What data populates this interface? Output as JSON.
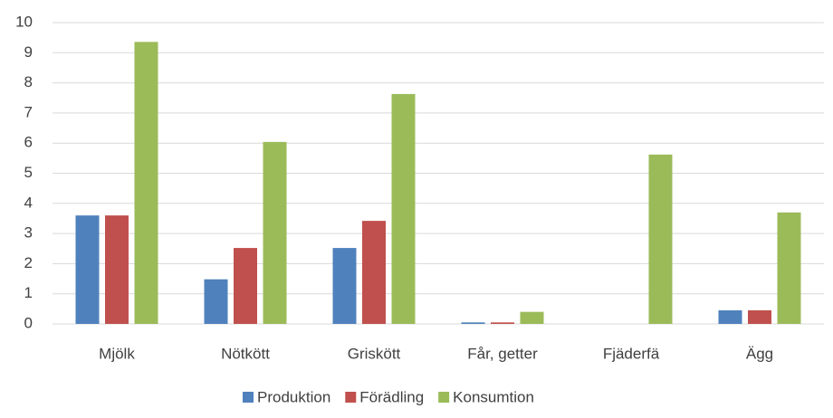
{
  "chart_data": {
    "type": "bar",
    "categories": [
      "Mjölk",
      "Nötkött",
      "Griskött",
      "Får, getter",
      "Fjäderfä",
      "Ägg"
    ],
    "series": [
      {
        "name": "Produktion",
        "color": "#4f81bd",
        "values": [
          3.6,
          1.48,
          2.52,
          0.05,
          0,
          0.45
        ]
      },
      {
        "name": "Förädling",
        "color": "#c0504d",
        "values": [
          3.6,
          2.52,
          3.42,
          0.05,
          0,
          0.45
        ]
      },
      {
        "name": "Konsumtion",
        "color": "#9bbb59",
        "values": [
          9.36,
          6.04,
          7.63,
          0.4,
          5.62,
          3.7
        ]
      }
    ],
    "ylim": [
      0,
      10
    ],
    "yticks": [
      0,
      1,
      2,
      3,
      4,
      5,
      6,
      7,
      8,
      9,
      10
    ],
    "grid": true,
    "legend": "bottom"
  }
}
